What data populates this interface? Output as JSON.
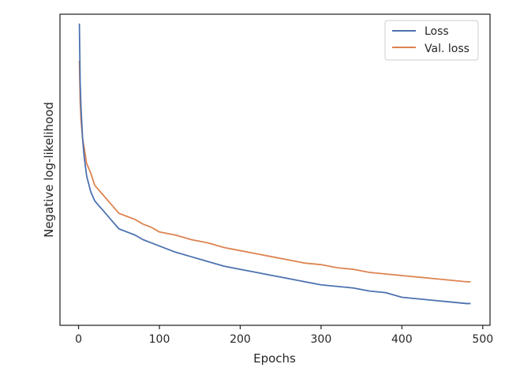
{
  "chart_data": {
    "type": "line",
    "title": "",
    "xlabel": "Epochs",
    "ylabel": "Negative log-likelihood",
    "xlim": [
      -23,
      509
    ],
    "ylim": [
      0,
      100
    ],
    "xticks": [
      0,
      100,
      200,
      300,
      400,
      500
    ],
    "yticks_labeled": false,
    "grid": false,
    "legend_position": "top-right",
    "series": [
      {
        "name": "Loss",
        "color": "#4c72b0",
        "points": [
          [
            1,
            97
          ],
          [
            2,
            78
          ],
          [
            3,
            70
          ],
          [
            5,
            60
          ],
          [
            7,
            54
          ],
          [
            10,
            48
          ],
          [
            15,
            43
          ],
          [
            20,
            40
          ],
          [
            30,
            37
          ],
          [
            40,
            34
          ],
          [
            50,
            31
          ],
          [
            60,
            30
          ],
          [
            70,
            29
          ],
          [
            80,
            27.5
          ],
          [
            90,
            26.5
          ],
          [
            100,
            25.5
          ],
          [
            120,
            23.5
          ],
          [
            140,
            22
          ],
          [
            160,
            20.5
          ],
          [
            180,
            19
          ],
          [
            200,
            18
          ],
          [
            220,
            17
          ],
          [
            240,
            16
          ],
          [
            260,
            15
          ],
          [
            280,
            14
          ],
          [
            300,
            13
          ],
          [
            320,
            12.5
          ],
          [
            340,
            12
          ],
          [
            360,
            11
          ],
          [
            380,
            10.5
          ],
          [
            400,
            9
          ],
          [
            420,
            8.5
          ],
          [
            440,
            8
          ],
          [
            460,
            7.5
          ],
          [
            480,
            7
          ],
          [
            485,
            7
          ]
        ]
      },
      {
        "name": "Val. loss",
        "color": "#dd8452",
        "points": [
          [
            1,
            85
          ],
          [
            2,
            72
          ],
          [
            3,
            66
          ],
          [
            5,
            60
          ],
          [
            7,
            57
          ],
          [
            10,
            52
          ],
          [
            15,
            49
          ],
          [
            20,
            45
          ],
          [
            30,
            42
          ],
          [
            40,
            39
          ],
          [
            50,
            36
          ],
          [
            60,
            35
          ],
          [
            70,
            34
          ],
          [
            80,
            32.5
          ],
          [
            90,
            31.5
          ],
          [
            100,
            30
          ],
          [
            120,
            29
          ],
          [
            140,
            27.5
          ],
          [
            160,
            26.5
          ],
          [
            180,
            25
          ],
          [
            200,
            24
          ],
          [
            220,
            23
          ],
          [
            240,
            22
          ],
          [
            260,
            21
          ],
          [
            280,
            20
          ],
          [
            300,
            19.5
          ],
          [
            320,
            18.5
          ],
          [
            340,
            18
          ],
          [
            360,
            17
          ],
          [
            380,
            16.5
          ],
          [
            400,
            16
          ],
          [
            420,
            15.5
          ],
          [
            440,
            15
          ],
          [
            460,
            14.5
          ],
          [
            480,
            14
          ],
          [
            485,
            14
          ]
        ]
      }
    ]
  }
}
